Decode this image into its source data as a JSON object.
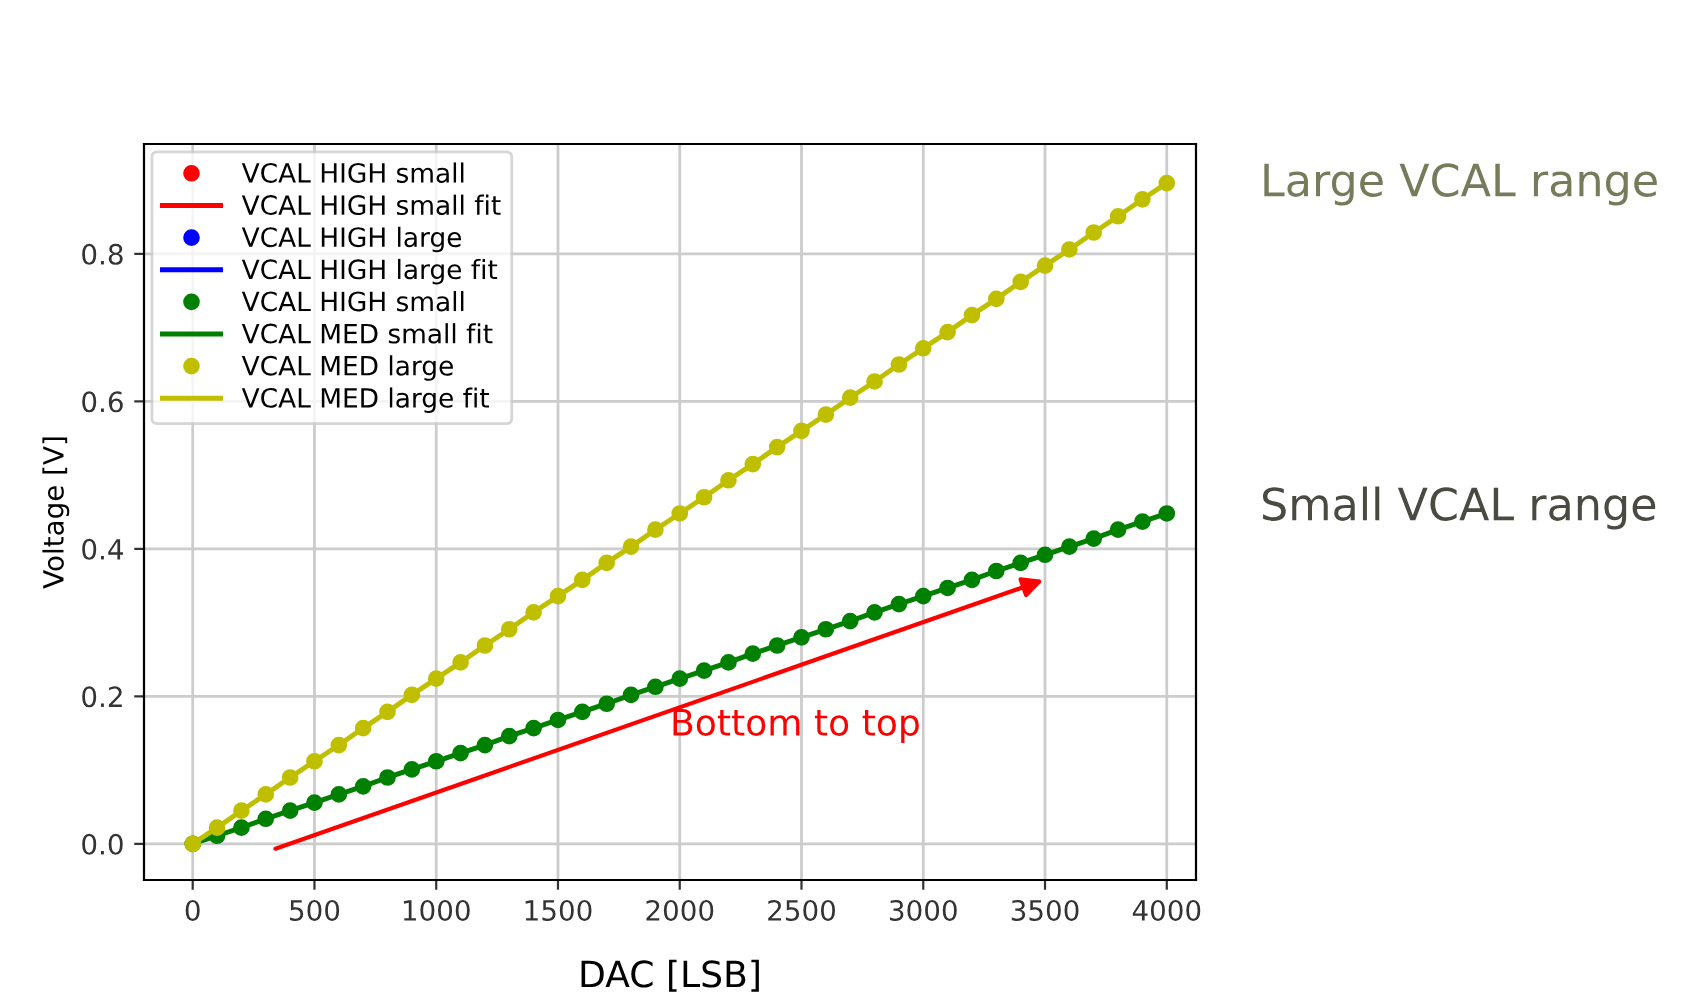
{
  "chart_data": {
    "type": "line",
    "xlabel": "DAC [LSB]",
    "ylabel": "Voltage [V]",
    "x": [
      0,
      100,
      200,
      300,
      400,
      500,
      600,
      700,
      800,
      900,
      1000,
      1100,
      1200,
      1300,
      1400,
      1500,
      1600,
      1700,
      1800,
      1900,
      2000,
      2100,
      2200,
      2300,
      2400,
      2500,
      2600,
      2700,
      2800,
      2900,
      3000,
      3100,
      3200,
      3300,
      3400,
      3500,
      3600,
      3700,
      3800,
      3900,
      4000
    ],
    "series": [
      {
        "name": "VCAL HIGH small",
        "type": "scatter",
        "marker": "circle",
        "color": "#ff0000",
        "values": [
          null,
          null,
          null,
          null,
          null,
          null,
          null,
          null,
          null,
          null,
          null,
          null,
          null,
          null,
          null,
          null,
          null,
          null,
          null,
          null,
          null,
          null,
          null,
          null,
          null,
          null,
          null,
          null,
          null,
          null,
          null,
          null,
          null,
          null,
          null,
          null,
          null,
          null,
          null,
          null,
          null
        ]
      },
      {
        "name": "VCAL HIGH small fit",
        "color": "#ff0000",
        "values": [
          null,
          null,
          null,
          null,
          null,
          null,
          null,
          null,
          null,
          null,
          null,
          null,
          null,
          null,
          null,
          null,
          null,
          null,
          null,
          null,
          null,
          null,
          null,
          null,
          null,
          null,
          null,
          null,
          null,
          null,
          null,
          null,
          null,
          null,
          null,
          null,
          null,
          null,
          null,
          null,
          null
        ]
      },
      {
        "name": "VCAL HIGH large",
        "type": "scatter",
        "marker": "circle",
        "color": "#0000ff",
        "values": [
          null,
          null,
          null,
          null,
          null,
          null,
          null,
          null,
          null,
          null,
          null,
          null,
          null,
          null,
          null,
          null,
          null,
          null,
          null,
          null,
          null,
          null,
          null,
          null,
          null,
          null,
          null,
          null,
          null,
          null,
          null,
          null,
          null,
          null,
          null,
          null,
          null,
          null,
          null,
          null,
          null
        ]
      },
      {
        "name": "VCAL HIGH large fit",
        "color": "#0000ff",
        "values": [
          null,
          null,
          null,
          null,
          null,
          null,
          null,
          null,
          null,
          null,
          null,
          null,
          null,
          null,
          null,
          null,
          null,
          null,
          null,
          null,
          null,
          null,
          null,
          null,
          null,
          null,
          null,
          null,
          null,
          null,
          null,
          null,
          null,
          null,
          null,
          null,
          null,
          null,
          null,
          null,
          null
        ]
      },
      {
        "name": "VCAL HIGH small",
        "type": "scatter",
        "marker": "circle",
        "color": "#008000",
        "values": [
          0,
          0.011,
          0.022,
          0.034,
          0.045,
          0.056,
          0.067,
          0.078,
          0.09,
          0.101,
          0.112,
          0.123,
          0.134,
          0.146,
          0.157,
          0.168,
          0.179,
          0.19,
          0.202,
          0.213,
          0.224,
          0.235,
          0.246,
          0.258,
          0.269,
          0.28,
          0.291,
          0.302,
          0.314,
          0.325,
          0.336,
          0.347,
          0.358,
          0.37,
          0.381,
          0.392,
          0.403,
          0.414,
          0.426,
          0.437,
          0.448
        ]
      },
      {
        "name": "VCAL MED small fit",
        "color": "#008000",
        "values": [
          0,
          0.011,
          0.022,
          0.034,
          0.045,
          0.056,
          0.067,
          0.078,
          0.09,
          0.101,
          0.112,
          0.123,
          0.134,
          0.146,
          0.157,
          0.168,
          0.179,
          0.19,
          0.202,
          0.213,
          0.224,
          0.235,
          0.246,
          0.258,
          0.269,
          0.28,
          0.291,
          0.302,
          0.314,
          0.325,
          0.336,
          0.347,
          0.358,
          0.37,
          0.381,
          0.392,
          0.403,
          0.414,
          0.426,
          0.437,
          0.448
        ]
      },
      {
        "name": "VCAL MED large",
        "type": "scatter",
        "marker": "circle",
        "color": "#bfbf00",
        "values": [
          0,
          0.022,
          0.045,
          0.067,
          0.09,
          0.112,
          0.134,
          0.157,
          0.179,
          0.202,
          0.224,
          0.246,
          0.269,
          0.291,
          0.314,
          0.336,
          0.358,
          0.381,
          0.403,
          0.426,
          0.448,
          0.47,
          0.493,
          0.515,
          0.538,
          0.56,
          0.582,
          0.605,
          0.627,
          0.65,
          0.672,
          0.694,
          0.717,
          0.739,
          0.762,
          0.784,
          0.806,
          0.829,
          0.851,
          0.874,
          0.896
        ]
      },
      {
        "name": "VCAL MED large fit",
        "color": "#bfbf00",
        "values": [
          0,
          0.022,
          0.045,
          0.067,
          0.09,
          0.112,
          0.134,
          0.157,
          0.179,
          0.202,
          0.224,
          0.246,
          0.269,
          0.291,
          0.314,
          0.336,
          0.358,
          0.381,
          0.403,
          0.426,
          0.448,
          0.47,
          0.493,
          0.515,
          0.538,
          0.56,
          0.582,
          0.605,
          0.627,
          0.65,
          0.672,
          0.694,
          0.717,
          0.739,
          0.762,
          0.784,
          0.806,
          0.829,
          0.851,
          0.874,
          0.896
        ]
      }
    ],
    "xlim": [
      -200,
      4120
    ],
    "ylim": [
      -0.049,
      0.949
    ],
    "xticks": [
      0,
      500,
      1000,
      1500,
      2000,
      2500,
      3000,
      3500,
      4000
    ],
    "yticks": [
      {
        "value": 0,
        "label": "0.0"
      },
      0.2,
      0.4,
      0.6,
      0.8
    ],
    "grid": true,
    "legend": "top left",
    "annotations": [
      "Bottom to top",
      "Large VCAL range",
      "Small VCAL range"
    ]
  }
}
